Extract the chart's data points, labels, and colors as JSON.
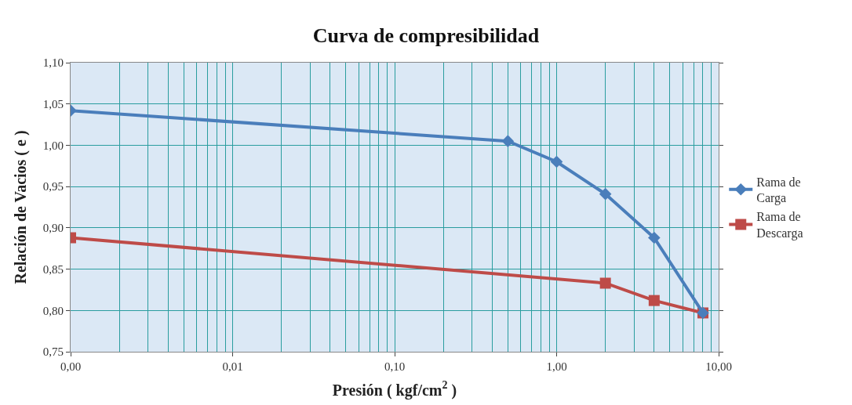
{
  "chart_data": {
    "type": "line",
    "title": "Curva de compresibilidad",
    "xlabel": "Presión ( kgf/cm$^{2}$ )",
    "ylabel": "Relación de Vacios ( e )",
    "log": "x",
    "xlim": [
      0.001,
      10
    ],
    "xticks": [
      {
        "value": 0.001,
        "label": "0,00"
      },
      {
        "value": 0.01,
        "label": "0,01"
      },
      {
        "value": 0.1,
        "label": "0,10"
      },
      {
        "value": 1,
        "label": "1,00"
      },
      {
        "value": 10,
        "label": "10,00"
      }
    ],
    "ylim": [
      0.75,
      1.1
    ],
    "yticks": [
      {
        "value": 0.75,
        "label": "0,75"
      },
      {
        "value": 0.8,
        "label": "0,80"
      },
      {
        "value": 0.85,
        "label": "0,85"
      },
      {
        "value": 0.9,
        "label": "0,90"
      },
      {
        "value": 0.95,
        "label": "0,95"
      },
      {
        "value": 1.0,
        "label": "1,00"
      },
      {
        "value": 1.05,
        "label": "1,05"
      },
      {
        "value": 1.1,
        "label": "1,10"
      }
    ],
    "grid": true,
    "legend": "right",
    "series": [
      {
        "name": "Rama de Carga",
        "color": "#4a7ebb",
        "marker": "diamond",
        "x": [
          0.001,
          0.5,
          1,
          2,
          4,
          8
        ],
        "values": [
          1.042,
          1.005,
          0.98,
          0.941,
          0.888,
          0.797
        ]
      },
      {
        "name": "Rama de Descarga",
        "color": "#be4b48",
        "marker": "square",
        "x": [
          0.001,
          2,
          4,
          8
        ],
        "values": [
          0.888,
          0.833,
          0.812,
          0.797
        ]
      }
    ]
  }
}
